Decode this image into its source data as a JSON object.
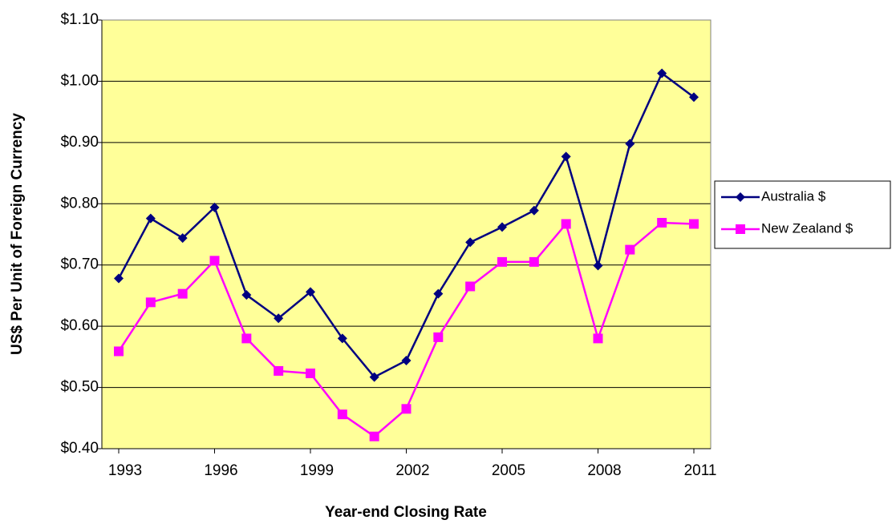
{
  "chart_data": {
    "type": "line",
    "x_label": "Year-end Closing Rate",
    "y_label": "US$ Per Unit of Foreign Currency",
    "categories": [
      "1993",
      null,
      null,
      "1996",
      null,
      null,
      "1999",
      null,
      null,
      "2002",
      null,
      null,
      "2005",
      null,
      null,
      "2008",
      null,
      null,
      "2011"
    ],
    "series": [
      {
        "name": "Australia $",
        "color": "#000080",
        "marker": "diamond",
        "values": [
          0.678,
          0.776,
          0.744,
          0.794,
          0.651,
          0.613,
          0.656,
          0.58,
          0.517,
          0.544,
          0.653,
          0.737,
          0.762,
          0.789,
          0.877,
          0.699,
          0.898,
          1.013,
          0.974
        ]
      },
      {
        "name": "New Zealand $",
        "color": "#ff00ff",
        "marker": "square",
        "values": [
          0.559,
          0.639,
          0.653,
          0.707,
          0.58,
          0.527,
          0.523,
          0.456,
          0.42,
          0.465,
          0.582,
          0.665,
          0.705,
          0.705,
          0.767,
          0.58,
          0.725,
          0.769,
          0.767
        ]
      }
    ],
    "ylim": [
      0.4,
      1.1
    ],
    "yticks": [
      {
        "value": 0.4,
        "label": "$0.40"
      },
      {
        "value": 0.5,
        "label": "$0.50"
      },
      {
        "value": 0.6,
        "label": "$0.60"
      },
      {
        "value": 0.7,
        "label": "$0.70"
      },
      {
        "value": 0.8,
        "label": "$0.80"
      },
      {
        "value": 0.9,
        "label": "$0.90"
      },
      {
        "value": 1.0,
        "label": "$1.00"
      },
      {
        "value": 1.1,
        "label": "$1.10"
      }
    ],
    "grid": true,
    "plot_background": "#ffff99",
    "legend": "right"
  }
}
